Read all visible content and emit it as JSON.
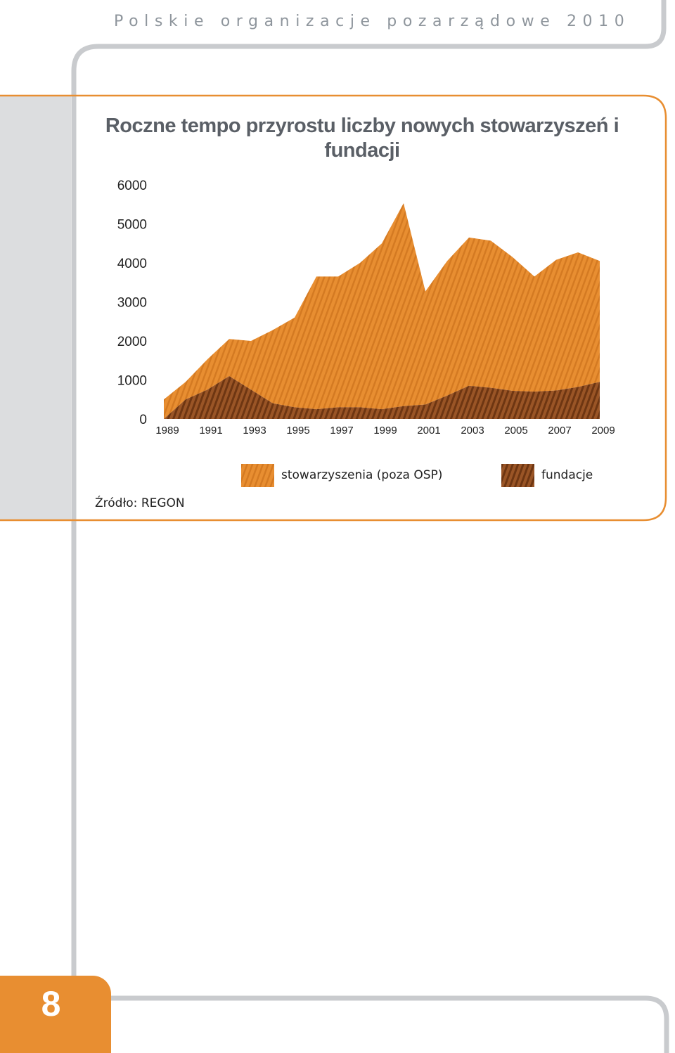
{
  "header": {
    "title": "Polskie organizacje pozarządowe 2010"
  },
  "page_number": "8",
  "source": "Źródło: REGON",
  "colors": {
    "accent": "#e88e31",
    "stowarzyszenia": "#e88e31",
    "fundacje": "#8b4a21",
    "frame_gray": "#c9cbce"
  },
  "chart_data": {
    "type": "area",
    "title": "Roczne tempo przyrostu liczby nowych stowarzyszeń i fundacji",
    "x": [
      1989,
      1990,
      1991,
      1992,
      1993,
      1994,
      1995,
      1996,
      1997,
      1998,
      1999,
      2000,
      2001,
      2002,
      2003,
      2004,
      2005,
      2006,
      2007,
      2008,
      2009
    ],
    "x_tick_labels": [
      "1989",
      "1991",
      "1993",
      "1995",
      "1997",
      "1999",
      "2001",
      "2003",
      "2005",
      "2007",
      "2009"
    ],
    "y_tick_labels": [
      "6000",
      "5000",
      "4000",
      "3000",
      "2000",
      "1000",
      "0"
    ],
    "ylim": [
      0,
      6000
    ],
    "stacked": true,
    "grid": false,
    "legend_position": "bottom",
    "series": [
      {
        "name": "fundacje",
        "color": "#8b4a21",
        "values": [
          0,
          500,
          750,
          1100,
          750,
          400,
          300,
          250,
          300,
          300,
          250,
          330,
          370,
          600,
          850,
          800,
          720,
          700,
          730,
          820,
          950
        ]
      },
      {
        "name": "stowarzyszenia (poza OSP)",
        "color": "#e88e31",
        "values": [
          500,
          450,
          780,
          950,
          1250,
          1880,
          2300,
          3400,
          3350,
          3700,
          4250,
          5200,
          2900,
          3450,
          3800,
          3770,
          3430,
          2950,
          3350,
          3450,
          3100
        ]
      }
    ]
  }
}
